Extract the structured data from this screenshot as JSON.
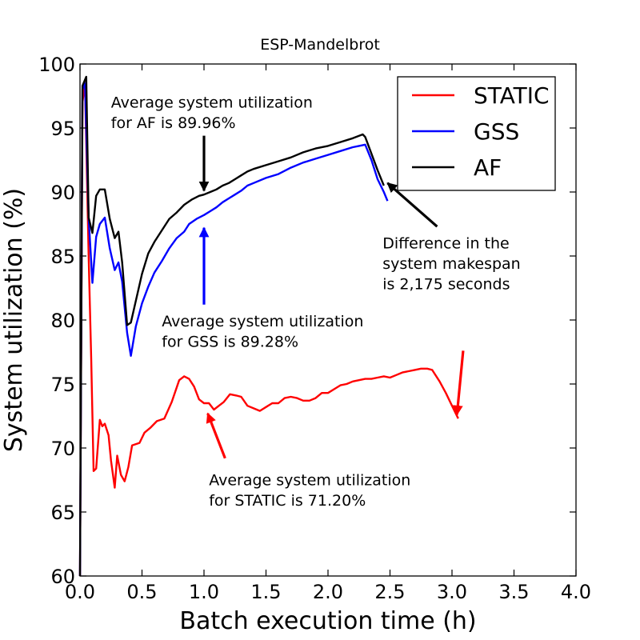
{
  "chart_data": {
    "type": "line",
    "title": "ESP-Mandelbrot",
    "xlabel": "Batch execution time (h)",
    "ylabel": "System utilization (%)",
    "xlim": [
      0.0,
      4.0
    ],
    "ylim": [
      60,
      100
    ],
    "xticks": [
      "0.0",
      "0.5",
      "1.0",
      "1.5",
      "2.0",
      "2.5",
      "3.0",
      "3.5",
      "4.0"
    ],
    "yticks": [
      "60",
      "65",
      "70",
      "75",
      "80",
      "85",
      "90",
      "95",
      "100"
    ],
    "grid": false,
    "legend_position": "top-right",
    "series": [
      {
        "name": "STATIC",
        "color": "#ff0000",
        "points": [
          [
            0.0,
            60.0
          ],
          [
            0.02,
            97.0
          ],
          [
            0.04,
            98.5
          ],
          [
            0.07,
            85.0
          ],
          [
            0.09,
            77.0
          ],
          [
            0.11,
            68.2
          ],
          [
            0.13,
            68.4
          ],
          [
            0.16,
            72.2
          ],
          [
            0.18,
            71.7
          ],
          [
            0.2,
            71.9
          ],
          [
            0.23,
            71.0
          ],
          [
            0.25,
            69.0
          ],
          [
            0.28,
            66.9
          ],
          [
            0.3,
            69.4
          ],
          [
            0.33,
            67.9
          ],
          [
            0.36,
            67.4
          ],
          [
            0.39,
            68.5
          ],
          [
            0.42,
            70.2
          ],
          [
            0.48,
            70.4
          ],
          [
            0.52,
            71.2
          ],
          [
            0.57,
            71.6
          ],
          [
            0.62,
            72.1
          ],
          [
            0.68,
            72.3
          ],
          [
            0.74,
            73.6
          ],
          [
            0.8,
            75.3
          ],
          [
            0.84,
            75.6
          ],
          [
            0.88,
            75.4
          ],
          [
            0.92,
            74.8
          ],
          [
            0.96,
            73.8
          ],
          [
            1.0,
            73.5
          ],
          [
            1.04,
            73.5
          ],
          [
            1.08,
            73.0
          ],
          [
            1.12,
            73.3
          ],
          [
            1.16,
            73.6
          ],
          [
            1.21,
            74.2
          ],
          [
            1.26,
            74.1
          ],
          [
            1.3,
            74.0
          ],
          [
            1.35,
            73.3
          ],
          [
            1.4,
            73.1
          ],
          [
            1.45,
            72.9
          ],
          [
            1.5,
            73.2
          ],
          [
            1.55,
            73.5
          ],
          [
            1.6,
            73.5
          ],
          [
            1.65,
            73.9
          ],
          [
            1.7,
            74.0
          ],
          [
            1.75,
            73.9
          ],
          [
            1.8,
            73.7
          ],
          [
            1.85,
            73.7
          ],
          [
            1.9,
            73.9
          ],
          [
            1.95,
            74.3
          ],
          [
            2.0,
            74.3
          ],
          [
            2.05,
            74.6
          ],
          [
            2.1,
            74.9
          ],
          [
            2.15,
            75.0
          ],
          [
            2.2,
            75.2
          ],
          [
            2.25,
            75.3
          ],
          [
            2.3,
            75.4
          ],
          [
            2.35,
            75.4
          ],
          [
            2.4,
            75.5
          ],
          [
            2.45,
            75.6
          ],
          [
            2.5,
            75.5
          ],
          [
            2.55,
            75.7
          ],
          [
            2.6,
            75.9
          ],
          [
            2.65,
            76.0
          ],
          [
            2.7,
            76.1
          ],
          [
            2.75,
            76.2
          ],
          [
            2.8,
            76.2
          ],
          [
            2.84,
            76.1
          ],
          [
            2.9,
            75.2
          ],
          [
            2.95,
            74.3
          ],
          [
            3.0,
            73.3
          ],
          [
            3.05,
            72.3
          ]
        ]
      },
      {
        "name": "GSS",
        "color": "#0000ff",
        "points": [
          [
            0.0,
            60.0
          ],
          [
            0.02,
            98.0
          ],
          [
            0.04,
            98.5
          ],
          [
            0.07,
            88.0
          ],
          [
            0.1,
            82.9
          ],
          [
            0.13,
            86.5
          ],
          [
            0.16,
            87.5
          ],
          [
            0.2,
            88.0
          ],
          [
            0.24,
            85.6
          ],
          [
            0.28,
            83.9
          ],
          [
            0.31,
            84.5
          ],
          [
            0.34,
            83.0
          ],
          [
            0.38,
            79.0
          ],
          [
            0.41,
            77.2
          ],
          [
            0.45,
            79.5
          ],
          [
            0.5,
            81.3
          ],
          [
            0.55,
            82.6
          ],
          [
            0.6,
            83.7
          ],
          [
            0.66,
            84.6
          ],
          [
            0.72,
            85.6
          ],
          [
            0.78,
            86.4
          ],
          [
            0.84,
            86.9
          ],
          [
            0.88,
            87.5
          ],
          [
            0.94,
            87.9
          ],
          [
            1.0,
            88.2
          ],
          [
            1.05,
            88.5
          ],
          [
            1.1,
            88.8
          ],
          [
            1.15,
            89.2
          ],
          [
            1.2,
            89.5
          ],
          [
            1.25,
            89.8
          ],
          [
            1.3,
            90.1
          ],
          [
            1.35,
            90.5
          ],
          [
            1.4,
            90.7
          ],
          [
            1.5,
            91.1
          ],
          [
            1.6,
            91.4
          ],
          [
            1.7,
            91.9
          ],
          [
            1.8,
            92.3
          ],
          [
            1.9,
            92.6
          ],
          [
            2.0,
            92.9
          ],
          [
            2.1,
            93.2
          ],
          [
            2.2,
            93.5
          ],
          [
            2.25,
            93.6
          ],
          [
            2.3,
            93.7
          ],
          [
            2.35,
            92.5
          ],
          [
            2.4,
            91.0
          ],
          [
            2.45,
            90.0
          ],
          [
            2.48,
            89.3
          ]
        ]
      },
      {
        "name": "AF",
        "color": "#000000",
        "points": [
          [
            0.0,
            60.0
          ],
          [
            0.02,
            98.3
          ],
          [
            0.05,
            99.0
          ],
          [
            0.07,
            88.0
          ],
          [
            0.1,
            86.8
          ],
          [
            0.13,
            89.7
          ],
          [
            0.16,
            90.2
          ],
          [
            0.2,
            90.2
          ],
          [
            0.24,
            87.9
          ],
          [
            0.28,
            86.4
          ],
          [
            0.31,
            86.9
          ],
          [
            0.34,
            84.5
          ],
          [
            0.38,
            79.6
          ],
          [
            0.41,
            79.8
          ],
          [
            0.45,
            81.5
          ],
          [
            0.5,
            83.6
          ],
          [
            0.55,
            85.2
          ],
          [
            0.6,
            86.1
          ],
          [
            0.66,
            87.0
          ],
          [
            0.72,
            87.9
          ],
          [
            0.78,
            88.4
          ],
          [
            0.84,
            89.0
          ],
          [
            0.9,
            89.4
          ],
          [
            0.96,
            89.7
          ],
          [
            1.0,
            89.8
          ],
          [
            1.05,
            90.0
          ],
          [
            1.1,
            90.2
          ],
          [
            1.15,
            90.5
          ],
          [
            1.2,
            90.7
          ],
          [
            1.25,
            91.0
          ],
          [
            1.3,
            91.3
          ],
          [
            1.35,
            91.6
          ],
          [
            1.4,
            91.8
          ],
          [
            1.5,
            92.1
          ],
          [
            1.6,
            92.4
          ],
          [
            1.7,
            92.7
          ],
          [
            1.8,
            93.1
          ],
          [
            1.9,
            93.4
          ],
          [
            2.0,
            93.6
          ],
          [
            2.1,
            93.9
          ],
          [
            2.2,
            94.2
          ],
          [
            2.28,
            94.5
          ],
          [
            2.3,
            94.3
          ],
          [
            2.35,
            93.0
          ],
          [
            2.4,
            91.7
          ],
          [
            2.45,
            90.5
          ]
        ]
      }
    ],
    "annotations": [
      {
        "id": "af",
        "lines": [
          "Average system utilization",
          "for AF is 89.96%"
        ],
        "text_pos": [
          0.25,
          96.6
        ],
        "arrow_from": [
          1.0,
          94.4
        ],
        "arrow_to": [
          1.0,
          90.1
        ],
        "color": "#000000"
      },
      {
        "id": "gss",
        "lines": [
          "Average system utilization",
          "for GSS is 89.28%"
        ],
        "text_pos": [
          0.66,
          79.5
        ],
        "arrow_from": [
          1.0,
          81.2
        ],
        "arrow_to": [
          1.0,
          87.2
        ],
        "color": "#0000ff"
      },
      {
        "id": "static",
        "lines": [
          "Average system utilization",
          "for STATIC is 71.20%"
        ],
        "text_pos": [
          1.04,
          67.1
        ],
        "arrow_from": [
          1.17,
          69.2
        ],
        "arrow_to": [
          1.03,
          72.7
        ],
        "color": "#ff0000"
      },
      {
        "id": "makespan",
        "lines": [
          "Difference in the",
          "system makespan",
          "is 2,175 seconds"
        ],
        "text_pos": [
          2.44,
          85.6
        ],
        "arrow_from": [
          2.88,
          87.3
        ],
        "arrow_to": [
          2.48,
          90.7
        ],
        "color": "#000000"
      },
      {
        "id": "makespan-red",
        "lines": [],
        "text_pos": [
          0,
          0
        ],
        "arrow_from": [
          3.09,
          77.6
        ],
        "arrow_to": [
          3.04,
          72.6
        ],
        "color": "#ff0000"
      }
    ]
  }
}
